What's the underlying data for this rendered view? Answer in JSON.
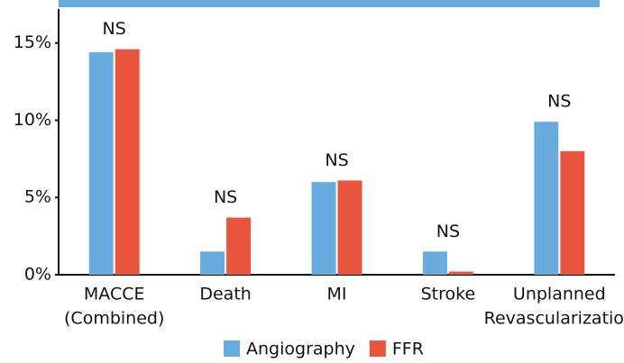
{
  "chart_data": {
    "type": "bar",
    "categories": [
      [
        "MACCE",
        "(Combined)"
      ],
      [
        "Death"
      ],
      [
        "MI"
      ],
      [
        "Stroke"
      ],
      [
        "Unplanned",
        "Revascularization"
      ]
    ],
    "series": [
      {
        "name": "Angiography",
        "color": "#68acdf",
        "values": [
          14.4,
          1.5,
          6.0,
          1.5,
          9.9
        ]
      },
      {
        "name": "FFR",
        "color": "#e9553e",
        "values": [
          14.6,
          3.7,
          6.1,
          0.2,
          8.0
        ]
      }
    ],
    "annotations": [
      "NS",
      "NS",
      "NS",
      "NS",
      "NS"
    ],
    "ylim": [
      0,
      17.2
    ],
    "yticks": [
      {
        "value": 0,
        "label": "0%"
      },
      {
        "value": 5,
        "label": "5%"
      },
      {
        "value": 10,
        "label": "10%"
      },
      {
        "value": 15,
        "label": "15%"
      }
    ],
    "legend": "bottom"
  }
}
